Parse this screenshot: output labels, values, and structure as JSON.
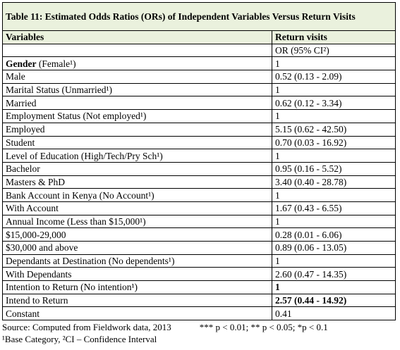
{
  "title": "Table 11: Estimated Odds Ratios (ORs) of Independent Variables Versus Return Visits",
  "header": {
    "variables": "Variables",
    "return_visits": "Return visits",
    "subheader": "OR (95% CI²)"
  },
  "rows": [
    {
      "label": "Gender",
      "label_rest": " (Female¹)",
      "value": "1"
    },
    {
      "label": "Male",
      "value": "0.52 (0.13 - 2.09)"
    },
    {
      "label": "Marital Status (Unmarried¹)",
      "value": "1"
    },
    {
      "label": "Married",
      "value": "0.62 (0.12 - 3.34)"
    },
    {
      "label": "Employment Status (Not employed¹)",
      "value": "1"
    },
    {
      "label": "Employed",
      "value": "5.15 (0.62 - 42.50)"
    },
    {
      "label": "Student",
      "value": "0.70 (0.03 - 16.92)"
    },
    {
      "label": "Level of Education (High/Tech/Pry Sch¹)",
      "value": "1"
    },
    {
      "label": "Bachelor",
      "value": "0.95 (0.16 - 5.52)"
    },
    {
      "label": "Masters & PhD",
      "value": "3.40 (0.40 - 28.78)"
    },
    {
      "label": "Bank Account in Kenya (No Account¹)",
      "value": "1"
    },
    {
      "label": "With Account",
      "value": "1.67 (0.43 - 6.55)"
    },
    {
      "label": "Annual Income (Less than $15,000¹)",
      "value": "1"
    },
    {
      "label": "$15,000-29,000",
      "value": "0.28 (0.01 - 6.06)"
    },
    {
      "label": "$30,000 and above",
      "value": "0.89 (0.06 - 13.05)"
    },
    {
      "label": "Dependants at Destination (No dependents¹)",
      "value": "1"
    },
    {
      "label": "With Dependants",
      "value": "2.60 (0.47 - 14.35)"
    },
    {
      "label": "Intention to Return (No intention¹)",
      "value": "1",
      "bold_value": true
    },
    {
      "label": "Intend to Return",
      "value": "2.57 (0.44 - 14.92)",
      "bold_value": true
    },
    {
      "label": "Constant",
      "value": "0.41"
    }
  ],
  "footer": {
    "source": "Source: Computed from Fieldwork data, 2013",
    "significance": "*** p < 0.01; ** p < 0.05; *p < 0.1",
    "notes": "¹Base Category, ²CI – Confidence Interval"
  }
}
